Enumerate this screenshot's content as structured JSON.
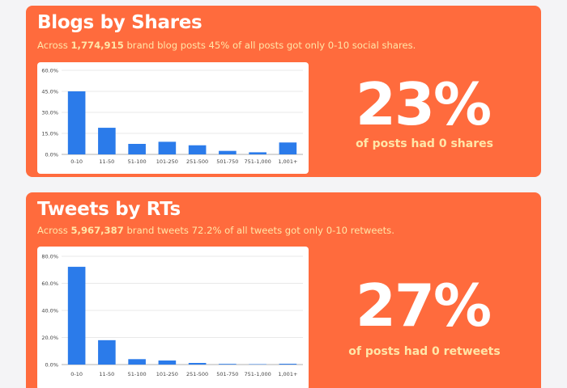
{
  "colors": {
    "card_background": "#ff6b3d",
    "subtitle_text": "#ffe6a8",
    "bar": "#2b7bea",
    "page_background": "#f4f4f6"
  },
  "blogs": {
    "title": "Blogs by Shares",
    "subtitle_pre": "Across ",
    "subtitle_count": "1,774,915",
    "subtitle_post": " brand blog posts 45% of all posts got only 0-10 social shares.",
    "big_stat": "23%",
    "stat_caption": "of posts had 0 shares"
  },
  "tweets": {
    "title": "Tweets by RTs",
    "subtitle_pre": "Across ",
    "subtitle_count": "5,967,387",
    "subtitle_post": " brand tweets 72.2% of all tweets got only 0-10 retweets.",
    "big_stat": "27%",
    "stat_caption": "of posts had 0 retweets"
  },
  "chart_data": [
    {
      "type": "bar",
      "categories": [
        "0-10",
        "11-50",
        "51-100",
        "101-250",
        "251-500",
        "501-750",
        "751-1,000",
        "1,001+"
      ],
      "values": [
        45,
        19,
        7.5,
        9,
        6.5,
        2.5,
        1.5,
        8.5
      ],
      "yticks": [
        "0.0%",
        "15.0%",
        "30.0%",
        "45.0%",
        "60.0%"
      ],
      "ylim": [
        0,
        60
      ],
      "grid": true,
      "legend": "none"
    },
    {
      "type": "bar",
      "categories": [
        "0-10",
        "11-50",
        "51-100",
        "101-250",
        "251-500",
        "501-750",
        "751-1,000",
        "1,001+"
      ],
      "values": [
        72.2,
        18,
        4,
        3,
        1.2,
        0.5,
        0.3,
        0.6
      ],
      "yticks": [
        "0.0%",
        "20.0%",
        "40.0%",
        "60.0%",
        "80.0%"
      ],
      "ylim": [
        0,
        80
      ],
      "grid": true,
      "legend": "none"
    }
  ]
}
